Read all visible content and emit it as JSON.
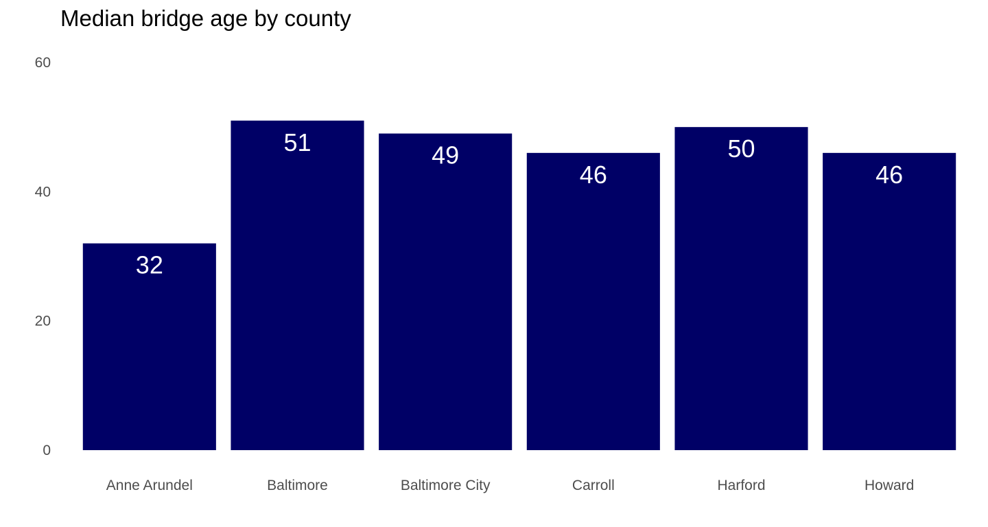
{
  "chart_data": {
    "type": "bar",
    "title": "Median bridge age by county",
    "xlabel": "",
    "ylabel": "",
    "categories": [
      "Anne Arundel",
      "Baltimore",
      "Baltimore City",
      "Carroll",
      "Harford",
      "Howard"
    ],
    "values": [
      32,
      51,
      49,
      46,
      50,
      46
    ],
    "data_labels": [
      "32",
      "51",
      "49",
      "46",
      "50",
      "46"
    ],
    "ylim": [
      0,
      60
    ],
    "yticks": [
      0,
      20,
      40,
      60
    ],
    "ytick_labels": [
      "0",
      "20",
      "40",
      "60"
    ],
    "grid": false,
    "legend": "none",
    "colors": {
      "bar": "#000066",
      "bar_label": "#ffffff",
      "tick_label": "#4d4d4d",
      "title": "#000000",
      "background": "#ffffff"
    }
  }
}
